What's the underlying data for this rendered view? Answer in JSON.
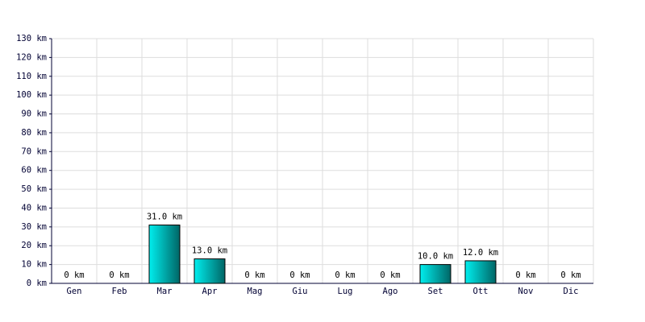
{
  "chart_data": {
    "type": "bar",
    "categories": [
      "Gen",
      "Feb",
      "Mar",
      "Apr",
      "Mag",
      "Giu",
      "Lug",
      "Ago",
      "Set",
      "Ott",
      "Nov",
      "Dic"
    ],
    "values": [
      0,
      0,
      31,
      13,
      0,
      0,
      0,
      0,
      10,
      12,
      0,
      0
    ],
    "value_labels": [
      "0 km",
      "0 km",
      "31.0 km",
      "13.0 km",
      "0 km",
      "0 km",
      "0 km",
      "0 km",
      "10.0 km",
      "12.0 km",
      "0 km",
      "0 km"
    ],
    "color": "#00cccc",
    "ylim": [
      0,
      130
    ],
    "yticks": [
      {
        "value": 0,
        "label": "0 km"
      },
      {
        "value": 10,
        "label": "10 km"
      },
      {
        "value": 20,
        "label": "20 km"
      },
      {
        "value": 30,
        "label": "30 km"
      },
      {
        "value": 40,
        "label": "40 km"
      },
      {
        "value": 50,
        "label": "50 km"
      },
      {
        "value": 60,
        "label": "60 km"
      },
      {
        "value": 70,
        "label": "70 km"
      },
      {
        "value": 80,
        "label": "80 km"
      },
      {
        "value": 90,
        "label": "90 km"
      },
      {
        "value": 100,
        "label": "100 km"
      },
      {
        "value": 110,
        "label": "110 km"
      },
      {
        "value": 120,
        "label": "120 km"
      },
      {
        "value": 130,
        "label": "130 km"
      }
    ],
    "grid": true
  }
}
